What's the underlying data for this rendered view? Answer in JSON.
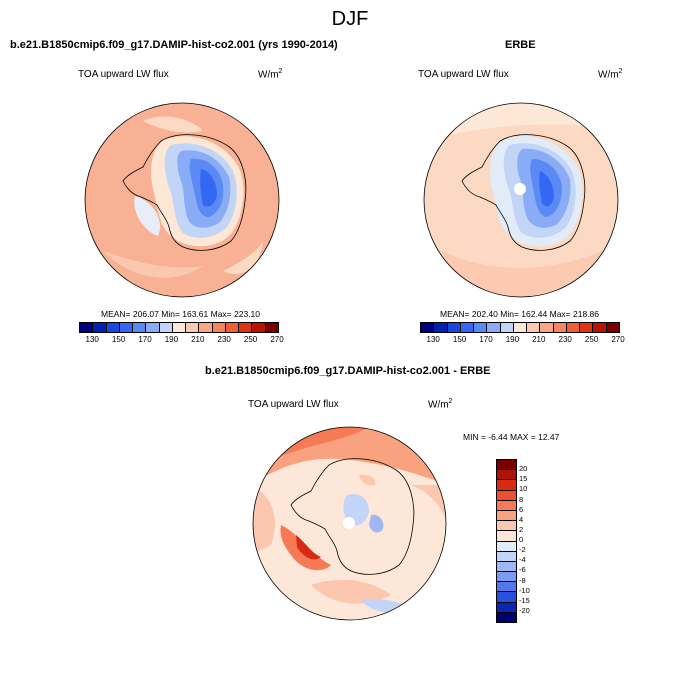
{
  "title": "DJF",
  "panels": {
    "model": {
      "title": "b.e21.B1850cmip6.f09_g17.DAMIP-hist-co2.001 (yrs 1990-2014)",
      "variable": "TOA upward LW flux",
      "units": "W/m",
      "units_exp": "2",
      "stats": "MEAN= 206.07  Min= 163.61  Max= 223.10"
    },
    "obs": {
      "title": "ERBE",
      "variable": "TOA upward LW flux",
      "units": "W/m",
      "units_exp": "2",
      "stats": "MEAN= 202.40  Min= 162.44  Max= 218.86"
    },
    "diff": {
      "title": "b.e21.B1850cmip6.f09_g17.DAMIP-hist-co2.001 - ERBE",
      "variable": "TOA upward LW flux",
      "units": "W/m",
      "units_exp": "2",
      "stats": "MIN = -6.44 MAX =  12.47"
    }
  },
  "colorbar_abs": {
    "colors": [
      "#000080",
      "#0022b3",
      "#1848dd",
      "#3568f2",
      "#5a8af5",
      "#8aabf5",
      "#c2d5f7",
      "#fde7d7",
      "#fbcab0",
      "#f8a784",
      "#f48560",
      "#ef6038",
      "#e03512",
      "#b81404",
      "#7a0000"
    ],
    "labels": [
      "130",
      "150",
      "170",
      "190",
      "210",
      "230",
      "250",
      "270"
    ]
  },
  "colorbar_diff": {
    "colors": [
      "#7a0000",
      "#b01205",
      "#d82a10",
      "#ee4f2c",
      "#f57a55",
      "#f9a280",
      "#fbc7ae",
      "#fde6d8",
      "#e2ecf8",
      "#c2d5f7",
      "#9db8f3",
      "#7a9cf0",
      "#5278ea",
      "#2b4fdd",
      "#0a26b5",
      "#000070"
    ],
    "labels": [
      "20",
      "15",
      "10",
      "8",
      "6",
      "4",
      "2",
      "0",
      "-2",
      "-4",
      "-6",
      "-8",
      "-10",
      "-15",
      "-20"
    ]
  },
  "map_colors": {
    "ocean_model": "#f8b194",
    "ocean_obs": "#fcd9c3",
    "diff_base": "#fde7d8",
    "coast": "#000000"
  }
}
